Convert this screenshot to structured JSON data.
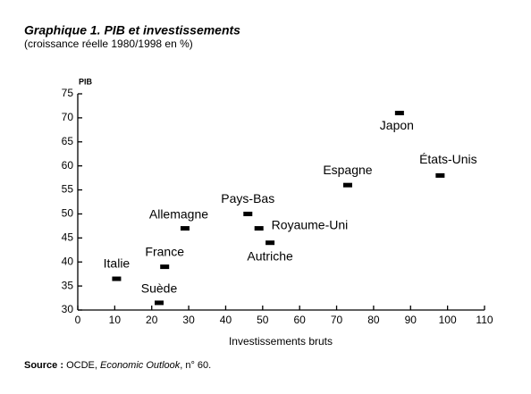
{
  "chart_data": {
    "type": "scatter",
    "title": "Graphique 1. PIB et investissements",
    "subtitle": "(croissance réelle 1980/1998 en %)",
    "y_label": "PIB",
    "x_label": "Investissements bruts",
    "labels": [
      "Japon",
      "États-Unis",
      "Espagne",
      "Pays-Bas",
      "Royaume-Uni",
      "Allemagne",
      "Autriche",
      "France",
      "Italie",
      "Suède"
    ],
    "x": [
      87,
      98,
      73,
      46,
      49,
      29,
      52,
      23.5,
      10.5,
      22
    ],
    "values": [
      71,
      58,
      56,
      50,
      47,
      47,
      44,
      39,
      36.5,
      31.5
    ],
    "color": "#000000",
    "xlim": [
      0,
      110
    ],
    "xticks": [
      0,
      10,
      20,
      30,
      40,
      50,
      60,
      70,
      80,
      90,
      100,
      110
    ],
    "ylim": [
      30,
      75
    ],
    "yticks": [
      30,
      35,
      40,
      45,
      50,
      55,
      60,
      65,
      70,
      75
    ],
    "grid": false
  },
  "source": {
    "label": "Source :",
    "text": "OCDE, ",
    "publication": "Economic Outlook",
    "issue": ", n° 60."
  }
}
